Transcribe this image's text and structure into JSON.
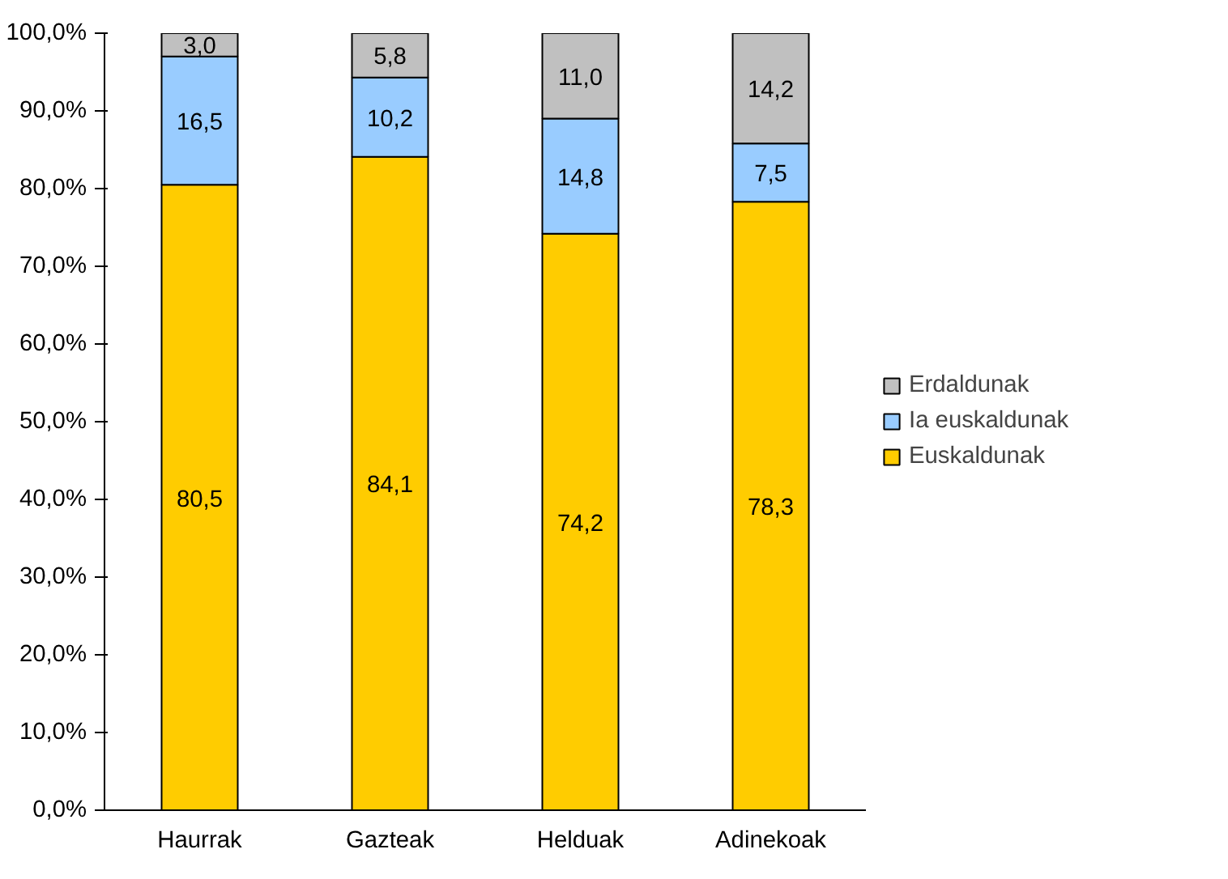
{
  "chart_data": {
    "type": "bar",
    "stacked": true,
    "categories": [
      "Haurrak",
      "Gazteak",
      "Helduak",
      "Adinekoak"
    ],
    "series": [
      {
        "name": "Euskaldunak",
        "color": "#ffcc00",
        "values": [
          80.5,
          84.1,
          74.2,
          78.3
        ],
        "value_labels": [
          "80,5",
          "84,1",
          "74,2",
          "78,3"
        ]
      },
      {
        "name": "Ia euskaldunak",
        "color": "#99ccff",
        "values": [
          16.5,
          10.2,
          14.8,
          7.5
        ],
        "value_labels": [
          "16,5",
          "10,2",
          "14,8",
          "7,5"
        ]
      },
      {
        "name": "Erdaldunak",
        "color": "#c0c0c0",
        "values": [
          3.0,
          5.8,
          11.0,
          14.2
        ],
        "value_labels": [
          "3,0",
          "5,8",
          "11,0",
          "14,2"
        ]
      }
    ],
    "ylim": [
      0,
      100
    ],
    "yticks": [
      {
        "value": 0,
        "label": "0,0%"
      },
      {
        "value": 10,
        "label": "10,0%"
      },
      {
        "value": 20,
        "label": "20,0%"
      },
      {
        "value": 30,
        "label": "30,0%"
      },
      {
        "value": 40,
        "label": "40,0%"
      },
      {
        "value": 50,
        "label": "50,0%"
      },
      {
        "value": 60,
        "label": "60,0%"
      },
      {
        "value": 70,
        "label": "70,0%"
      },
      {
        "value": 80,
        "label": "80,0%"
      },
      {
        "value": 90,
        "label": "90,0%"
      },
      {
        "value": 100,
        "label": "100,0%"
      }
    ],
    "grid": false,
    "legend": "right"
  }
}
